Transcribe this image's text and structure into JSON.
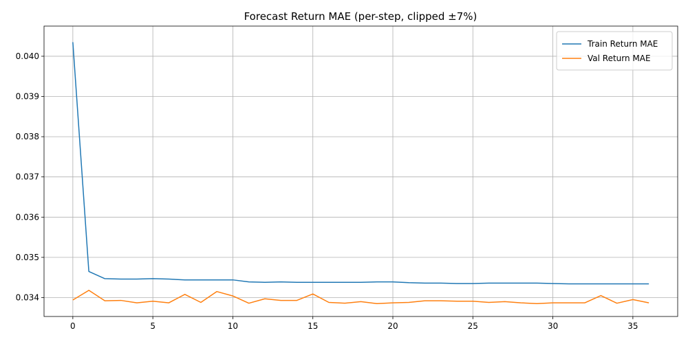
{
  "chart_data": {
    "type": "line",
    "title": "Forecast Return MAE (per-step, clipped ±7%)",
    "xlabel": "",
    "ylabel": "",
    "xlim": [
      -1.8,
      37.8
    ],
    "ylim": [
      0.03353,
      0.04075
    ],
    "xticks": [
      0,
      5,
      10,
      15,
      20,
      25,
      30,
      35
    ],
    "yticks": [
      0.034,
      0.035,
      0.036,
      0.037,
      0.038,
      0.039,
      0.04
    ],
    "ytick_labels": [
      "0.034",
      "0.035",
      "0.036",
      "0.037",
      "0.038",
      "0.039",
      "0.040"
    ],
    "grid": true,
    "legend_position": "top-right",
    "x": [
      0,
      1,
      2,
      3,
      4,
      5,
      6,
      7,
      8,
      9,
      10,
      11,
      12,
      13,
      14,
      15,
      16,
      17,
      18,
      19,
      20,
      21,
      22,
      23,
      24,
      25,
      26,
      27,
      28,
      29,
      30,
      31,
      32,
      33,
      34,
      35,
      36
    ],
    "series": [
      {
        "name": "Train Return MAE",
        "color": "#1f77b4",
        "values": [
          0.04035,
          0.03465,
          0.03447,
          0.03446,
          0.03446,
          0.03447,
          0.03446,
          0.03444,
          0.03444,
          0.03444,
          0.03444,
          0.03439,
          0.03438,
          0.03439,
          0.03438,
          0.03438,
          0.03438,
          0.03438,
          0.03438,
          0.03439,
          0.03439,
          0.03437,
          0.03436,
          0.03436,
          0.03435,
          0.03435,
          0.03436,
          0.03436,
          0.03436,
          0.03436,
          0.03435,
          0.03434,
          0.03434,
          0.03434,
          0.03434,
          0.03434,
          0.03434
        ]
      },
      {
        "name": "Val Return MAE",
        "color": "#ff7f0e",
        "values": [
          0.03394,
          0.03418,
          0.03392,
          0.03393,
          0.03387,
          0.03391,
          0.03387,
          0.03408,
          0.03388,
          0.03415,
          0.03404,
          0.03386,
          0.03397,
          0.03393,
          0.03393,
          0.03409,
          0.03388,
          0.03386,
          0.0339,
          0.03385,
          0.03387,
          0.03388,
          0.03392,
          0.03392,
          0.03391,
          0.03391,
          0.03388,
          0.0339,
          0.03387,
          0.03385,
          0.03387,
          0.03387,
          0.03387,
          0.03405,
          0.03386,
          0.03395,
          0.03387
        ]
      }
    ]
  }
}
